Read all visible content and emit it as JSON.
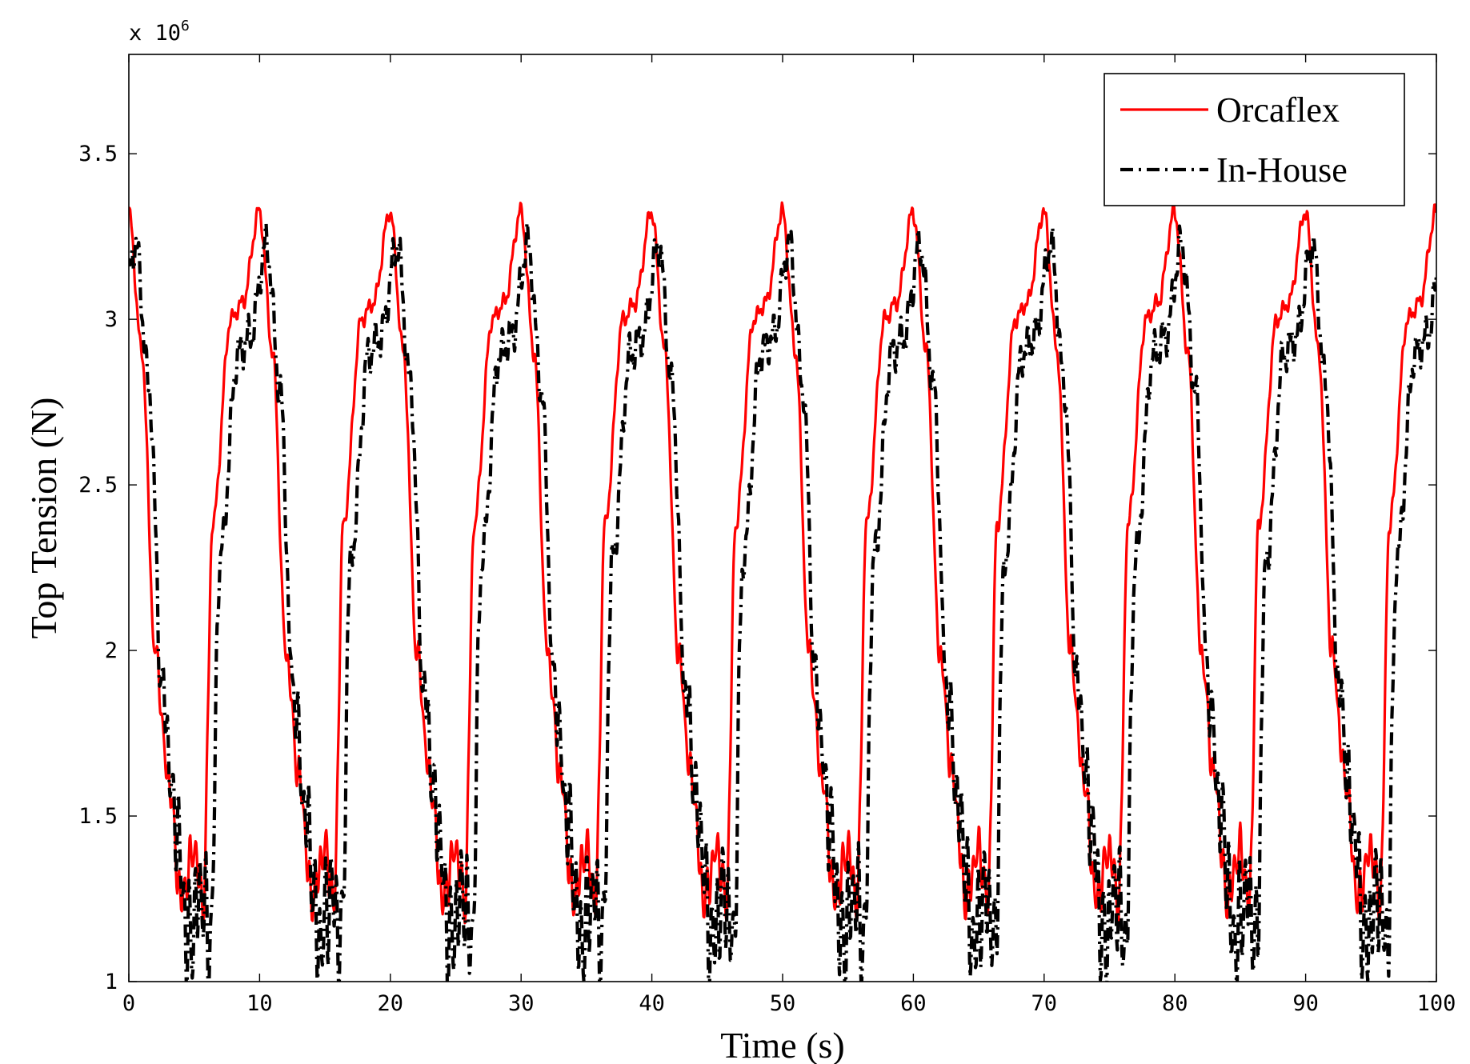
{
  "chart_data": {
    "type": "line",
    "title": "",
    "xlabel": "Time (s)",
    "ylabel": "Top Tension (N)",
    "xlim": [
      0,
      100
    ],
    "ylim": [
      1,
      3.8
    ],
    "x_ticks": [
      0,
      10,
      20,
      30,
      40,
      50,
      60,
      70,
      80,
      90,
      100
    ],
    "y_ticks": [
      1,
      1.5,
      2,
      2.5,
      3,
      3.5
    ],
    "y_tick_labels": [
      "1",
      "1.5",
      "2",
      "2.5",
      "3",
      "3.5"
    ],
    "y_multiplier": {
      "prefix": "x 10",
      "exponent": "6"
    },
    "grid": false,
    "legend": {
      "position": "top-right"
    },
    "series_shape": {
      "period_s": 10,
      "peak_time_s": 10,
      "description_points": [
        {
          "t": 0.0,
          "v": 3.32
        },
        {
          "t": 1.0,
          "v": 2.9
        },
        {
          "t": 2.0,
          "v": 2.0
        },
        {
          "t": 3.0,
          "v": 1.62
        },
        {
          "t": 4.0,
          "v": 1.25
        },
        {
          "t": 5.0,
          "v": 1.4
        },
        {
          "t": 5.7,
          "v": 1.24
        },
        {
          "t": 6.4,
          "v": 2.38
        },
        {
          "t": 7.8,
          "v": 3.0
        },
        {
          "t": 8.7,
          "v": 3.05
        },
        {
          "t": 10.0,
          "v": 3.33
        }
      ]
    },
    "series": [
      {
        "name": "Orcaflex",
        "color": "#ff0000",
        "style": "solid",
        "peak_value": 3.33,
        "trough_value": 1.21,
        "phase_shift_s": 0.0
      },
      {
        "name": "In-House",
        "color": "#000000",
        "style": "dashdot",
        "peak_value": 3.23,
        "trough_value": 1.08,
        "phase_shift_s": 0.55
      }
    ]
  }
}
